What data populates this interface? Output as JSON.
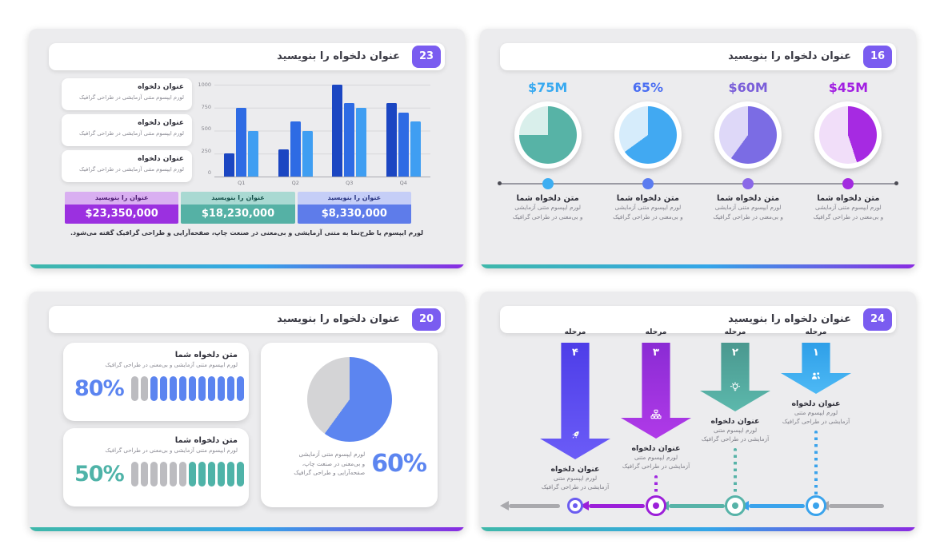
{
  "shared": {
    "footer_gradient": [
      "#3fb8aa",
      "#33a6e8",
      "#8a2be2"
    ],
    "slide_background": "#ececee",
    "badge_color": "#7a5cf0"
  },
  "slide23": {
    "badge": "23",
    "title": "عنوان دلخواه را بنویسید",
    "cards": [
      {
        "title": "عنوان دلخواه",
        "subtitle": "لورم ایپسوم متنی آزمایشی در طراحی گرافیک"
      },
      {
        "title": "عنوان دلخواه",
        "subtitle": "لورم ایپسوم متنی آزمایشی در طراحی گرافیک"
      },
      {
        "title": "عنوان دلخواه",
        "subtitle": "لورم ایپسوم متنی آزمایشی در طراحی گرافیک"
      }
    ],
    "table": {
      "columns": [
        {
          "header": "عنوان را بنویسید",
          "value": "$23,350,000",
          "header_bg": "#d9aff1",
          "header_fg": "#4b1a70",
          "value_bg": "#9b30e0"
        },
        {
          "header": "عنوان را بنویسید",
          "value": "$18,230,000",
          "header_bg": "#a9d9d2",
          "header_fg": "#114d46",
          "value_bg": "#55b1a5"
        },
        {
          "header": "عنوان را بنویسید",
          "value": "$8,330,000",
          "header_bg": "#c5cef7",
          "header_fg": "#24307d",
          "value_bg": "#5e7cea"
        }
      ]
    },
    "caption": "لورم ایپسوم یا طرح‌نما به متنی آزمایشی و بی‌معنی در صنعت چاپ، صفحه‌آرایی و طراحی گرافیک گفته می‌شود."
  },
  "slide16": {
    "badge": "16",
    "title": "عنوان دلخواه را بنویسید",
    "items": [
      {
        "value": "$75M",
        "pct": 75,
        "label_color": "#38a9f0",
        "dot_color": "#3daef2",
        "pie_color": "#57b3a6",
        "pie_light": "#d9efeb",
        "title": "متن دلخواه شما",
        "line1": "لورم ایپسوم متنی آزمایشی",
        "line2": "و بی‌معنی در طراحی گرافیک"
      },
      {
        "value": "65%",
        "pct": 65,
        "label_color": "#4a6ef2",
        "dot_color": "#5b7cf0",
        "pie_color": "#41a9f2",
        "pie_light": "#d6ecfb",
        "title": "متن دلخواه شما",
        "line1": "لورم ایپسوم متنی آزمایشی",
        "line2": "و بی‌معنی در طراحی گرافیک"
      },
      {
        "value": "$60M",
        "pct": 60,
        "label_color": "#7a5ed9",
        "dot_color": "#8a68e8",
        "pie_color": "#7b6ce4",
        "pie_light": "#ded8f8",
        "title": "متن دلخواه شما",
        "line1": "لورم ایپسوم متنی آزمایشی",
        "line2": "و بی‌معنی در طراحی گرافیک"
      },
      {
        "value": "$45M",
        "pct": 45,
        "label_color": "#a21fe2",
        "dot_color": "#a32ae0",
        "pie_color": "#a62ae2",
        "pie_light": "#f1def9",
        "title": "متن دلخواه شما",
        "line1": "لورم ایپسوم متنی آزمایشی",
        "line2": "و بی‌معنی در طراحی گرافیک"
      }
    ]
  },
  "slide20": {
    "badge": "20",
    "title": "عنوان دلخواه را بنویسید",
    "pill_gray": "#bcbcc0",
    "stats": [
      {
        "title": "متن دلخواه شما",
        "subtitle": "لورم ایپسوم متنی آزمایشی و بی‌معنی در طراحی گرافیک",
        "value": "80%",
        "filled": 10,
        "total": 12,
        "color": "#5b84f0"
      },
      {
        "title": "متن دلخواه شما",
        "subtitle": "لورم ایپسوم متنی آزمایشی و بی‌معنی در طراحی گرافیک",
        "value": "50%",
        "filled": 6,
        "total": 12,
        "color": "#4fb3a8"
      }
    ],
    "pie": {
      "pct": 60,
      "value": "60%",
      "color": "#5c85f0",
      "rest_color": "#d4d4d6",
      "lines": [
        "لورم ایپسوم متنی آزمایشی",
        "و بی‌معنی در صنعت چاپ،",
        "صفحه‌آرایی و طراحی گرافیک"
      ]
    }
  },
  "slide24": {
    "badge": "24",
    "title": "عنوان دلخواه را بنویسید",
    "timeline_colors": {
      "gray": "#a9a9ad",
      "blue": "#3aa3ec",
      "teal": "#57b3a8",
      "magenta": "#9c1fd9",
      "violet": "#6b5cf0"
    },
    "stages": [
      {
        "label": "مرحله",
        "num": "۴",
        "icon": "rocket-icon",
        "grad": [
          "#4d3de8",
          "#6b5cf7"
        ],
        "line_color": "#6b5cf0",
        "title": "عنوان دلخواه",
        "line1": "لورم ایپسوم متنی",
        "line2": "آزمایشی در طراحی گرافیک"
      },
      {
        "label": "مرحله",
        "num": "۳",
        "icon": "sitemap-icon",
        "grad": [
          "#8a2bd4",
          "#b03ae8"
        ],
        "line_color": "#a027e0",
        "title": "عنوان دلخواه",
        "line1": "لورم ایپسوم متنی",
        "line2": "آزمایشی در طراحی گرافیک"
      },
      {
        "label": "مرحله",
        "num": "۲",
        "icon": "lightbulb-icon",
        "grad": [
          "#4a988f",
          "#5cb8ac"
        ],
        "line_color": "#57b3a8",
        "title": "عنوان دلخواه",
        "line1": "لورم ایپسوم متنی",
        "line2": "آزمایشی در طراحی گرافیک"
      },
      {
        "label": "مرحله",
        "num": "۱",
        "icon": "people-icon",
        "grad": [
          "#2e9fe8",
          "#4db9f5"
        ],
        "line_color": "#3aa3ec",
        "title": "عنوان دلخواه",
        "line1": "لورم ایپسوم متنی",
        "line2": "آزمایشی در طراحی گرافیک"
      }
    ]
  },
  "chart_data": [
    {
      "id": "grouped-bar-slide-23",
      "type": "bar",
      "title": "",
      "categories": [
        "Q1",
        "Q2",
        "Q3",
        "Q4"
      ],
      "series": [
        {
          "name": "series-dark-blue",
          "color": "#1b46c2",
          "values": [
            250,
            300,
            1000,
            800
          ]
        },
        {
          "name": "series-blue",
          "color": "#2e6be4",
          "values": [
            750,
            600,
            800,
            700
          ]
        },
        {
          "name": "series-light-blue",
          "color": "#3f9ef2",
          "values": [
            500,
            500,
            750,
            600
          ]
        }
      ],
      "xlabel": "",
      "ylabel": "",
      "ylim": [
        0,
        1000
      ],
      "yticks": [
        0,
        250,
        500,
        750,
        1000
      ],
      "grid": true,
      "legend": false
    },
    {
      "id": "pies-slide-16",
      "type": "pie",
      "pies": [
        {
          "label": "$75M",
          "values": [
            75,
            25
          ]
        },
        {
          "label": "65%",
          "values": [
            65,
            35
          ]
        },
        {
          "label": "$60M",
          "values": [
            60,
            40
          ]
        },
        {
          "label": "$45M",
          "values": [
            45,
            55
          ]
        }
      ]
    },
    {
      "id": "pie-slide-20",
      "type": "pie",
      "labels": [
        "60%",
        ""
      ],
      "values": [
        60,
        40
      ]
    },
    {
      "id": "progress-pills-slide-20",
      "type": "bar",
      "categories": [
        "80%",
        "50%"
      ],
      "values": [
        80,
        50
      ],
      "ylim": [
        0,
        100
      ]
    }
  ]
}
